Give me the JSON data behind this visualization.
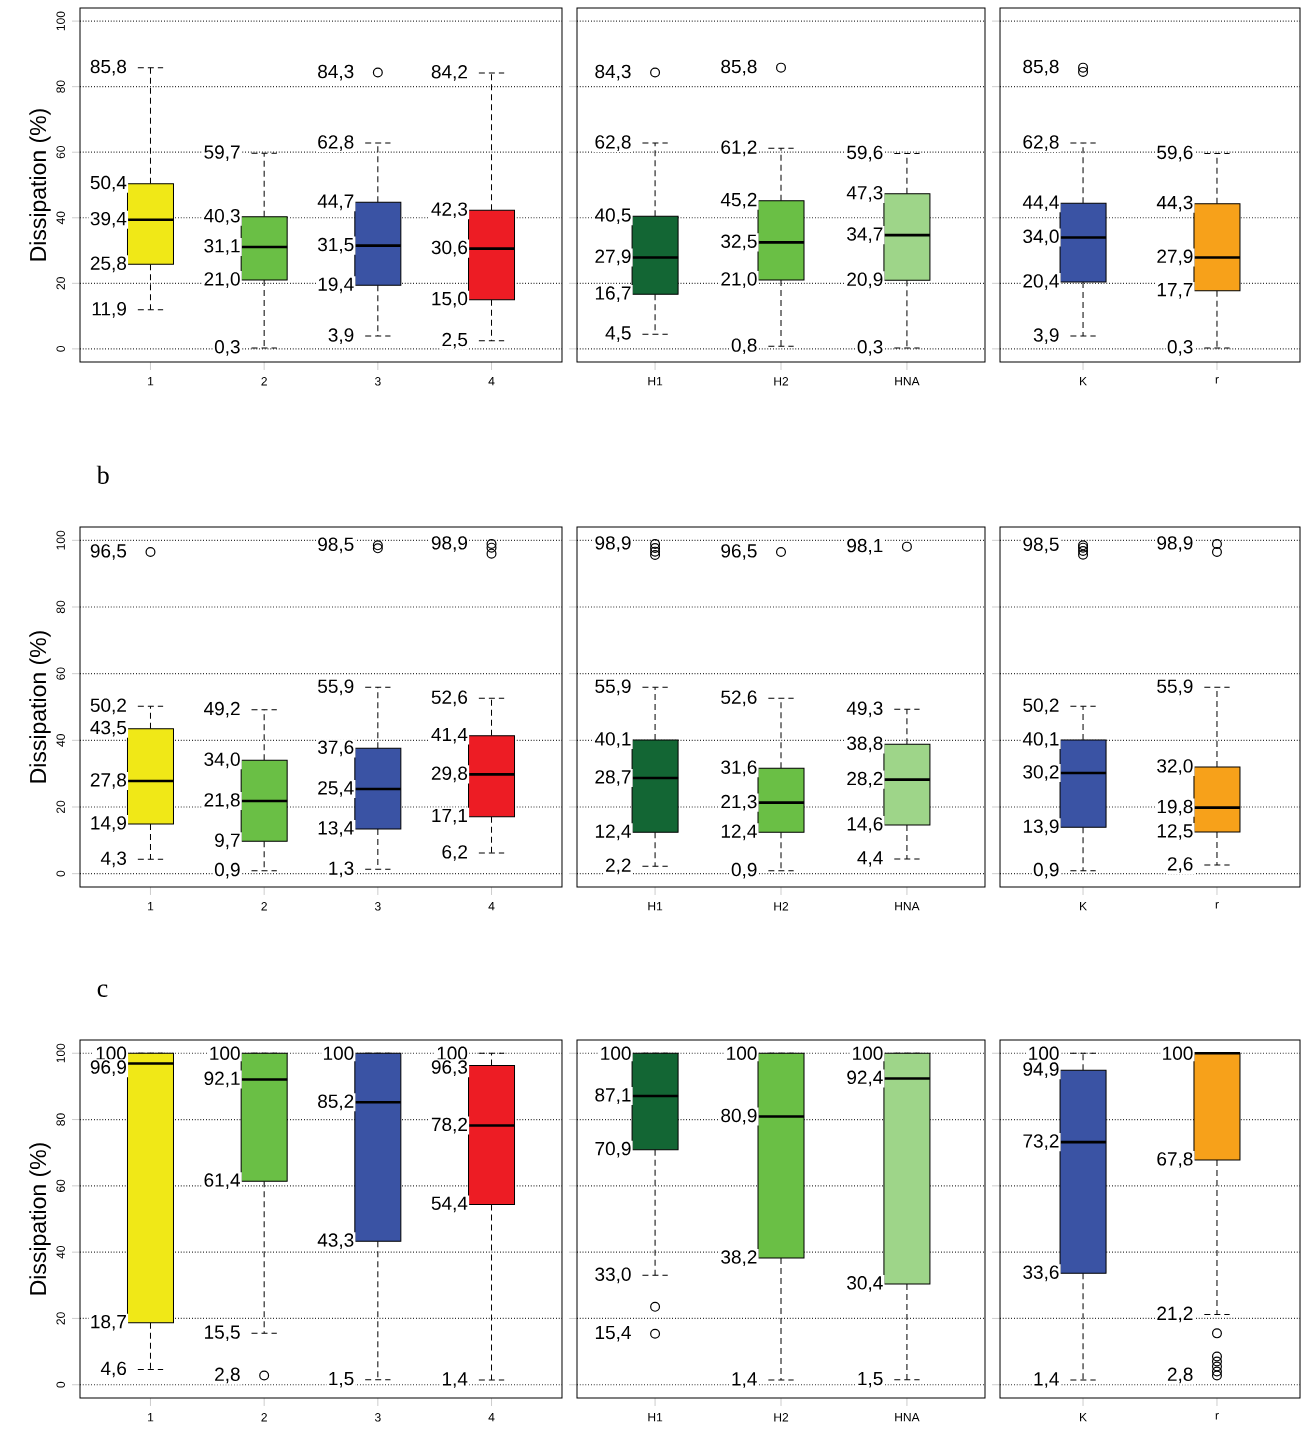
{
  "chart_data": [
    {
      "type": "box",
      "ylabel": "Dissipation (%)",
      "categories": [
        "1",
        "2",
        "3",
        "4"
      ],
      "colors": [
        "#f0e817",
        "#6abf45",
        "#3a53a4",
        "#ed1c24"
      ],
      "ylim": [
        -4,
        104
      ],
      "yticks": [
        0,
        20,
        40,
        60,
        80,
        100
      ],
      "grid": "y",
      "boxes": [
        {
          "low": 11.9,
          "q1": 25.8,
          "median": 39.4,
          "q3": 50.4,
          "high": 85.8
        },
        {
          "low": 0.3,
          "q1": 21.0,
          "median": 31.1,
          "q3": 40.3,
          "high": 59.7
        },
        {
          "low": 3.9,
          "q1": 19.4,
          "median": 31.5,
          "q3": 44.7,
          "high": 62.8,
          "outliers": [
            84.3
          ]
        },
        {
          "low": 2.5,
          "q1": 15.0,
          "median": 30.6,
          "q3": 42.3,
          "high": 84.2
        }
      ],
      "annotations": [
        "85,8",
        "50,4",
        "39,4",
        "25,8",
        "11,9",
        "59,7",
        "40,3",
        "31,1",
        "21,0",
        "0,3",
        "84,3",
        "62,8",
        "44,7",
        "31,5",
        "19,4",
        "3,9",
        "84,2",
        "42,3",
        "30,6",
        "15,0",
        "2,5"
      ]
    },
    {
      "type": "box",
      "categories": [
        "H1",
        "H2",
        "HNA"
      ],
      "colors": [
        "#136634",
        "#6abf45",
        "#9ed589"
      ],
      "ylim": [
        -4,
        104
      ],
      "yticks": [
        0,
        20,
        40,
        60,
        80,
        100
      ],
      "grid": "y",
      "tick_labels": "x",
      "boxes": [
        {
          "low": 4.5,
          "q1": 16.7,
          "median": 27.9,
          "q3": 40.5,
          "high": 62.8,
          "outliers": [
            84.3
          ]
        },
        {
          "low": 0.8,
          "q1": 21.0,
          "median": 32.5,
          "q3": 45.2,
          "high": 61.2,
          "outliers": [
            85.8
          ]
        },
        {
          "low": 0.3,
          "q1": 20.9,
          "median": 34.7,
          "q3": 47.3,
          "high": 59.6
        }
      ],
      "annotations": [
        "84,3",
        "62,8",
        "40,5",
        "27,9",
        "16,7",
        "4,5",
        "85,8",
        "61,2",
        "45,2",
        "32,5",
        "21,0",
        "0,8",
        "59,6",
        "47,3",
        "34,7",
        "20,9",
        "0,3"
      ]
    },
    {
      "type": "box",
      "categories": [
        "K",
        "r"
      ],
      "colors": [
        "#3a53a4",
        "#f7a11a"
      ],
      "ylim": [
        -4,
        104
      ],
      "yticks": [
        0,
        20,
        40,
        60,
        80,
        100
      ],
      "grid": "y",
      "tick_labels": "x",
      "boxes": [
        {
          "low": 3.9,
          "q1": 20.4,
          "median": 34.0,
          "q3": 44.4,
          "high": 62.8,
          "outliers": [
            84.5,
            85.8
          ]
        },
        {
          "low": 0.3,
          "q1": 17.7,
          "median": 27.9,
          "q3": 44.3,
          "high": 59.6
        }
      ],
      "annotations": [
        "85,8",
        "62,8",
        "44,4",
        "34,0",
        "20,4",
        "3,9",
        "59,6",
        "44,3",
        "27,9",
        "17,7",
        "0,3"
      ]
    },
    {
      "type": "box",
      "title": "b",
      "ylabel": "Dissipation (%)",
      "categories": [
        "1",
        "2",
        "3",
        "4"
      ],
      "colors": [
        "#f0e817",
        "#6abf45",
        "#3a53a4",
        "#ed1c24"
      ],
      "ylim": [
        -4,
        104
      ],
      "yticks": [
        0,
        20,
        40,
        60,
        80,
        100
      ],
      "grid": "y",
      "boxes": [
        {
          "low": 4.3,
          "q1": 14.9,
          "median": 27.8,
          "q3": 43.5,
          "high": 50.2,
          "outliers": [
            96.5
          ]
        },
        {
          "low": 0.9,
          "q1": 9.7,
          "median": 21.8,
          "q3": 34.0,
          "high": 49.2
        },
        {
          "low": 1.3,
          "q1": 13.4,
          "median": 25.4,
          "q3": 37.6,
          "high": 55.9,
          "outliers": [
            97.6,
            98.5
          ]
        },
        {
          "low": 6.2,
          "q1": 17.1,
          "median": 29.8,
          "q3": 41.4,
          "high": 52.6,
          "outliers": [
            96.0,
            97.8,
            98.9
          ]
        }
      ],
      "annotations": [
        "96,5",
        "50,2",
        "43,5",
        "27,8",
        "14,9",
        "4,3",
        "49,2",
        "34,0",
        "21,8",
        "9,7",
        "0,9",
        "98,5",
        "55,9",
        "37,6",
        "25,4",
        "13,4",
        "1,3",
        "98,9",
        "52,6",
        "41,4",
        "29,8",
        "17,1",
        "6,2"
      ]
    },
    {
      "type": "box",
      "categories": [
        "H1",
        "H2",
        "HNA"
      ],
      "colors": [
        "#136634",
        "#6abf45",
        "#9ed589"
      ],
      "ylim": [
        -4,
        104
      ],
      "yticks": [
        0,
        20,
        40,
        60,
        80,
        100
      ],
      "grid": "y",
      "tick_labels": "x",
      "boxes": [
        {
          "low": 2.2,
          "q1": 12.4,
          "median": 28.7,
          "q3": 40.1,
          "high": 55.9,
          "outliers": [
            95.6,
            96.6,
            97.7,
            98.9
          ]
        },
        {
          "low": 0.9,
          "q1": 12.4,
          "median": 21.3,
          "q3": 31.6,
          "high": 52.6,
          "outliers": [
            96.5
          ]
        },
        {
          "low": 4.4,
          "q1": 14.6,
          "median": 28.2,
          "q3": 38.8,
          "high": 49.3,
          "outliers": [
            98.1
          ]
        }
      ],
      "annotations": [
        "98,9",
        "55,9",
        "40,1",
        "28,7",
        "12,4",
        "2,2",
        "96,5",
        "52,6",
        "31,6",
        "21,3",
        "12,4",
        "0,9",
        "98,1",
        "49,3",
        "38,8",
        "28,2",
        "14,6",
        "4,4"
      ]
    },
    {
      "type": "box",
      "categories": [
        "K",
        "r"
      ],
      "colors": [
        "#3a53a4",
        "#f7a11a"
      ],
      "ylim": [
        -4,
        104
      ],
      "yticks": [
        0,
        20,
        40,
        60,
        80,
        100
      ],
      "grid": "y",
      "tick_labels": "x",
      "boxes": [
        {
          "low": 0.9,
          "q1": 13.9,
          "median": 30.2,
          "q3": 40.1,
          "high": 50.2,
          "outliers": [
            95.7,
            96.8,
            97.8,
            98.5
          ]
        },
        {
          "low": 2.6,
          "q1": 12.5,
          "median": 19.8,
          "q3": 32.0,
          "high": 55.9,
          "outliers": [
            96.5,
            98.9
          ]
        }
      ],
      "annotations": [
        "98,5",
        "50,2",
        "40,1",
        "30,2",
        "13,9",
        "0,9",
        "98,9",
        "55,9",
        "32,0",
        "19,8",
        "12,5",
        "2,6"
      ]
    },
    {
      "type": "box",
      "title": "c",
      "ylabel": "Dissipation (%)",
      "categories": [
        "1",
        "2",
        "3",
        "4"
      ],
      "colors": [
        "#f0e817",
        "#6abf45",
        "#3a53a4",
        "#ed1c24"
      ],
      "ylim": [
        -4,
        104
      ],
      "yticks": [
        0,
        20,
        40,
        60,
        80,
        100
      ],
      "grid": "y",
      "boxes": [
        {
          "low": 4.6,
          "q1": 18.7,
          "median": 96.9,
          "q3": 100,
          "high": 100
        },
        {
          "low": 15.5,
          "q1": 61.4,
          "median": 92.1,
          "q3": 100,
          "high": 100,
          "outliers": [
            2.8
          ]
        },
        {
          "low": 1.5,
          "q1": 43.3,
          "median": 85.2,
          "q3": 100,
          "high": 100
        },
        {
          "low": 1.4,
          "q1": 54.4,
          "median": 78.2,
          "q3": 96.3,
          "high": 100
        }
      ],
      "annotations": [
        "100",
        "96,9",
        "18,7",
        "4,6",
        "100",
        "92,1",
        "61,4",
        "15,5",
        "2,8",
        "100",
        "85,2",
        "43,3",
        "1,5",
        "100",
        "96,3",
        "78,2",
        "54,4",
        "1,4"
      ]
    },
    {
      "type": "box",
      "categories": [
        "H1",
        "H2",
        "HNA"
      ],
      "colors": [
        "#136634",
        "#6abf45",
        "#9ed589"
      ],
      "ylim": [
        -4,
        104
      ],
      "yticks": [
        0,
        20,
        40,
        60,
        80,
        100
      ],
      "grid": "y",
      "tick_labels": "x",
      "boxes": [
        {
          "low": 33.0,
          "q1": 70.9,
          "median": 87.1,
          "q3": 100,
          "high": 100,
          "outliers": [
            23.5,
            15.4
          ]
        },
        {
          "low": 1.4,
          "q1": 38.2,
          "median": 80.9,
          "q3": 100,
          "high": 100
        },
        {
          "low": 1.5,
          "q1": 30.4,
          "median": 92.4,
          "q3": 100,
          "high": 100
        }
      ],
      "annotations": [
        "100",
        "87,1",
        "70,9",
        "33,0",
        "15,4",
        "100",
        "80,9",
        "38,2",
        "1,4",
        "100",
        "92,4",
        "30,4",
        "1,5"
      ]
    },
    {
      "type": "box",
      "categories": [
        "K",
        "r"
      ],
      "colors": [
        "#3a53a4",
        "#f7a11a"
      ],
      "ylim": [
        -4,
        104
      ],
      "yticks": [
        0,
        20,
        40,
        60,
        80,
        100
      ],
      "grid": "y",
      "tick_labels": "x",
      "boxes": [
        {
          "low": 1.4,
          "q1": 33.6,
          "median": 73.2,
          "q3": 94.9,
          "high": 100
        },
        {
          "low": 21.2,
          "q1": 67.8,
          "median": 100,
          "q3": 100,
          "high": 100,
          "outliers": [
            15.5,
            8.5,
            7.0,
            5.5,
            4.0,
            2.8
          ]
        }
      ],
      "annotations": [
        "100",
        "94,9",
        "73,2",
        "33,6",
        "1,4",
        "100",
        "67,8",
        "21,2",
        "2,8"
      ]
    }
  ]
}
